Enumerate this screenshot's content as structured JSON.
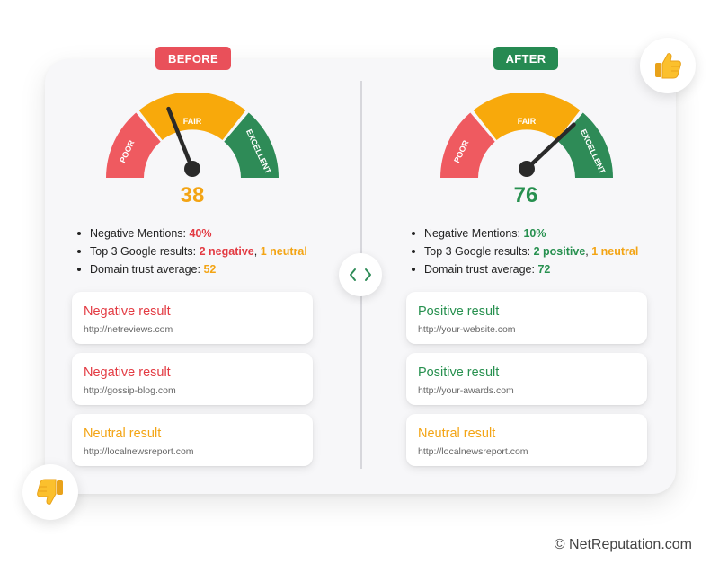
{
  "before": {
    "tag": "BEFORE",
    "gauge": {
      "labels": [
        "POOR",
        "FAIR",
        "EXCELLENT"
      ],
      "score": "38",
      "needle_value": 38
    },
    "score_color": "#f3a414",
    "stats": {
      "negative_label": "Negative Mentions: ",
      "negative_value": "40%",
      "google_label": "Top 3 Google results: ",
      "google_part1": "2 negative",
      "google_sep": ", ",
      "google_part2": "1 neutral",
      "trust_label": "Domain trust average: ",
      "trust_value": "52"
    },
    "results": [
      {
        "title": "Negative result",
        "url": "http://netreviews.com",
        "kind": "negative"
      },
      {
        "title": "Negative result",
        "url": "http://gossip-blog.com",
        "kind": "negative"
      },
      {
        "title": "Neutral result",
        "url": "http://localnewsreport.com",
        "kind": "neutral"
      }
    ]
  },
  "after": {
    "tag": "AFTER",
    "gauge": {
      "labels": [
        "POOR",
        "FAIR",
        "EXCELLENT"
      ],
      "score": "76",
      "needle_value": 76
    },
    "score_color": "#27904f",
    "stats": {
      "negative_label": "Negative Mentions: ",
      "negative_value": "10%",
      "google_label": "Top 3 Google results: ",
      "google_part1": "2 positive",
      "google_sep": ", ",
      "google_part2": "1 neutral",
      "trust_label": "Domain trust average: ",
      "trust_value": "72"
    },
    "results": [
      {
        "title": "Positive result",
        "url": "http://your-website.com",
        "kind": "positive"
      },
      {
        "title": "Positive result",
        "url": "http://your-awards.com",
        "kind": "positive"
      },
      {
        "title": "Neutral result",
        "url": "http://localnewsreport.com",
        "kind": "neutral"
      }
    ]
  },
  "icons": {
    "toggle": "left-right-chevrons-icon",
    "thumbs_up": "thumbs-up-icon",
    "thumbs_down": "thumbs-down-icon"
  },
  "colors": {
    "poor": "#ef5a60",
    "fair": "#f8a90b",
    "excellent": "#2e8b57",
    "needle": "#2a2a2a"
  },
  "footer": "© NetReputation.com"
}
